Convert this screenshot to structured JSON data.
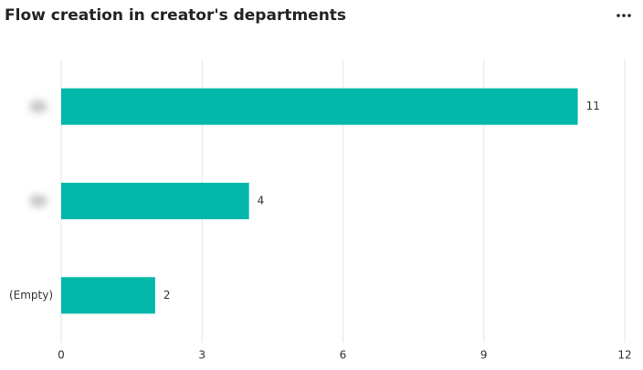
{
  "chart_data": {
    "type": "bar",
    "orientation": "horizontal",
    "title": "Flow creation in creator's departments",
    "categories": [
      null,
      null,
      "(Empty)"
    ],
    "values": [
      11,
      4,
      2
    ],
    "color": "#01b8aa",
    "xlim": [
      0,
      12
    ],
    "xticks": [
      0,
      3,
      6,
      9,
      12
    ],
    "grid": true
  }
}
